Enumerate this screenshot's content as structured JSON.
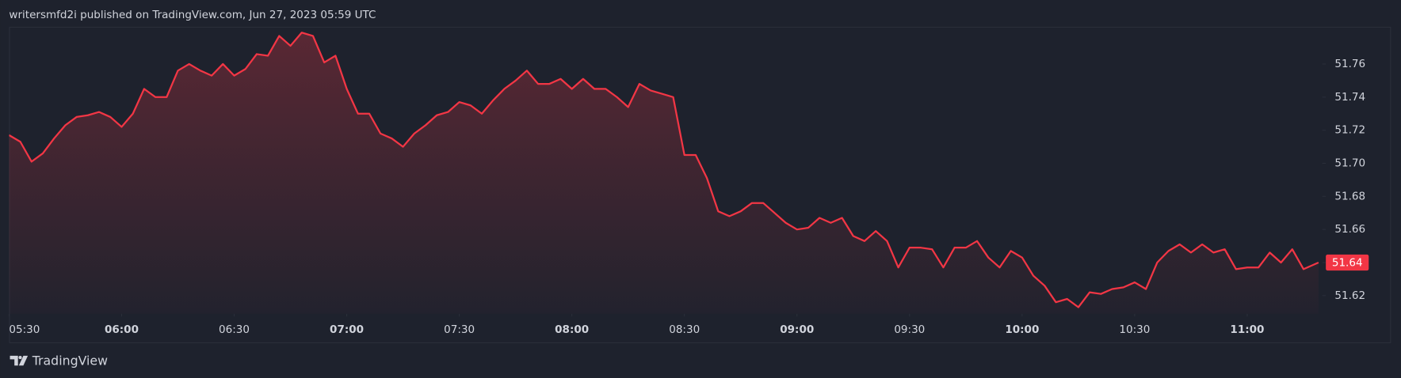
{
  "chart_data": {
    "type": "area",
    "title": "writersmfd2i published on TradingView.com, Jun 27, 2023 05:59 UTC",
    "footer": "TradingView",
    "color": "#f23645",
    "x": [
      "05:30",
      "05:33",
      "05:36",
      "05:39",
      "05:42",
      "05:45",
      "05:48",
      "05:51",
      "05:54",
      "05:57",
      "06:00",
      "06:03",
      "06:06",
      "06:09",
      "06:12",
      "06:15",
      "06:18",
      "06:21",
      "06:24",
      "06:27",
      "06:30",
      "06:33",
      "06:36",
      "06:39",
      "06:42",
      "06:45",
      "06:48",
      "06:51",
      "06:54",
      "06:57",
      "07:00",
      "07:03",
      "07:06",
      "07:09",
      "07:12",
      "07:15",
      "07:18",
      "07:21",
      "07:24",
      "07:27",
      "07:30",
      "07:33",
      "07:36",
      "07:39",
      "07:42",
      "07:45",
      "07:48",
      "07:51",
      "07:54",
      "07:57",
      "08:00",
      "08:03",
      "08:06",
      "08:09",
      "08:12",
      "08:15",
      "08:18",
      "08:21",
      "08:24",
      "08:27",
      "08:30",
      "08:33",
      "08:36",
      "08:39",
      "08:42",
      "08:45",
      "08:48",
      "08:51",
      "08:54",
      "08:57",
      "09:00",
      "09:03",
      "09:06",
      "09:09",
      "09:12",
      "09:15",
      "09:18",
      "09:21",
      "09:24",
      "09:27",
      "09:30",
      "09:33",
      "09:36",
      "09:39",
      "09:42",
      "09:45",
      "09:48",
      "09:51",
      "09:54",
      "09:57",
      "10:00",
      "10:03",
      "10:06",
      "10:09",
      "10:12",
      "10:15",
      "10:18",
      "10:21",
      "10:24",
      "10:27",
      "10:30",
      "10:33",
      "10:36",
      "10:39",
      "10:42",
      "10:45",
      "10:48",
      "10:51",
      "10:54",
      "10:57",
      "11:00",
      "11:03",
      "11:06",
      "11:09",
      "11:12",
      "11:15",
      "11:19"
    ],
    "values": [
      51.717,
      51.713,
      51.701,
      51.706,
      51.715,
      51.723,
      51.728,
      51.729,
      51.731,
      51.728,
      51.722,
      51.73,
      51.745,
      51.74,
      51.74,
      51.756,
      51.76,
      51.756,
      51.753,
      51.76,
      51.753,
      51.757,
      51.766,
      51.765,
      51.777,
      51.771,
      51.779,
      51.777,
      51.761,
      51.765,
      51.745,
      51.73,
      51.73,
      51.718,
      51.715,
      51.71,
      51.718,
      51.723,
      51.729,
      51.731,
      51.737,
      51.735,
      51.73,
      51.738,
      51.745,
      51.75,
      51.756,
      51.748,
      51.748,
      51.751,
      51.745,
      51.751,
      51.745,
      51.745,
      51.74,
      51.734,
      51.748,
      51.744,
      51.742,
      51.74,
      51.705,
      51.705,
      51.691,
      51.671,
      51.668,
      51.671,
      51.676,
      51.676,
      51.67,
      51.664,
      51.66,
      51.661,
      51.667,
      51.664,
      51.667,
      51.656,
      51.653,
      51.659,
      51.653,
      51.637,
      51.649,
      51.649,
      51.648,
      51.637,
      51.649,
      51.649,
      51.653,
      51.643,
      51.637,
      51.647,
      51.643,
      51.632,
      51.626,
      51.616,
      51.618,
      51.613,
      51.622,
      51.621,
      51.624,
      51.625,
      51.628,
      51.624,
      51.64,
      51.647,
      51.651,
      51.646,
      51.651,
      51.646,
      51.648,
      51.636,
      51.637,
      51.637,
      51.646,
      51.64,
      51.648,
      51.636,
      51.64
    ],
    "xlim": [
      "05:30",
      "11:20"
    ],
    "xticks": [
      "05:30",
      "06:00",
      "06:30",
      "07:00",
      "07:30",
      "08:00",
      "08:30",
      "09:00",
      "09:30",
      "10:00",
      "10:30",
      "11:00"
    ],
    "ylim": [
      51.609,
      51.782
    ],
    "yticks": [
      51.62,
      51.64,
      51.66,
      51.68,
      {
        "value": 51.7,
        "label": "51.70"
      },
      51.72,
      51.74,
      51.76
    ],
    "grid": false
  }
}
